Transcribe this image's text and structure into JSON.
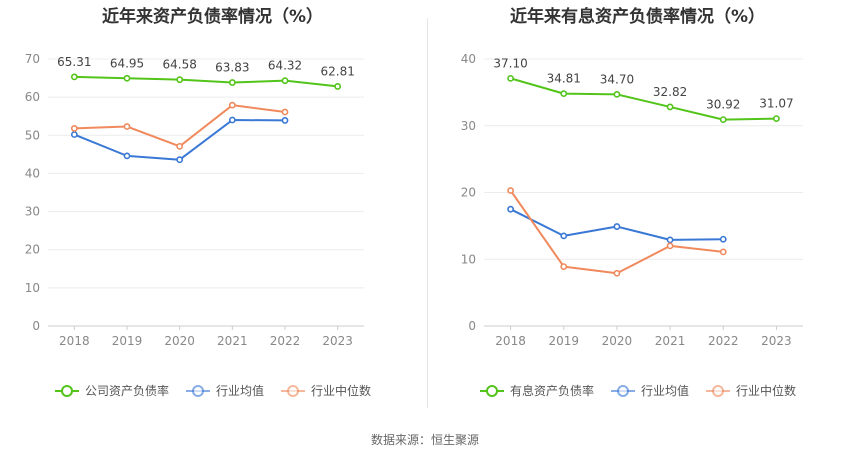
{
  "source_note": "数据来源：恒生聚源",
  "chart_data": [
    {
      "type": "line",
      "title": "近年来资产负债率情况（%）",
      "xlabel": "",
      "ylabel": "",
      "categories": [
        "2018",
        "2019",
        "2020",
        "2021",
        "2022",
        "2023"
      ],
      "ylim": [
        0,
        70
      ],
      "yticks": [
        0,
        10,
        20,
        30,
        40,
        50,
        60,
        70
      ],
      "grid": true,
      "legend_position": "bottom",
      "series": [
        {
          "name": "公司资产负债率",
          "color": "#52c41a",
          "values": [
            65.31,
            64.95,
            64.58,
            63.83,
            64.32,
            62.81
          ],
          "labels": [
            "65.31",
            "64.95",
            "64.58",
            "63.83",
            "64.32",
            "62.81"
          ]
        },
        {
          "name": "行业均值",
          "color": "#3a78d6",
          "values": [
            50.2,
            44.6,
            43.6,
            54.0,
            53.9,
            null
          ]
        },
        {
          "name": "行业中位数",
          "color": "#f08a5d",
          "values": [
            51.8,
            52.3,
            47.1,
            57.9,
            56.1,
            null
          ]
        }
      ]
    },
    {
      "type": "line",
      "title": "近年来有息资产负债率情况（%）",
      "xlabel": "",
      "ylabel": "",
      "categories": [
        "2018",
        "2019",
        "2020",
        "2021",
        "2022",
        "2023"
      ],
      "ylim": [
        0,
        40
      ],
      "yticks": [
        0,
        10,
        20,
        30,
        40
      ],
      "grid": true,
      "legend_position": "bottom",
      "series": [
        {
          "name": "有息资产负债率",
          "color": "#52c41a",
          "values": [
            37.1,
            34.81,
            34.7,
            32.82,
            30.92,
            31.07
          ],
          "labels": [
            "37.10",
            "34.81",
            "34.70",
            "32.82",
            "30.92",
            "31.07"
          ]
        },
        {
          "name": "行业均值",
          "color": "#3a78d6",
          "values": [
            17.5,
            13.5,
            14.9,
            12.9,
            13.0,
            null
          ]
        },
        {
          "name": "行业中位数",
          "color": "#f08a5d",
          "values": [
            20.3,
            8.9,
            7.9,
            12.0,
            11.1,
            null
          ]
        }
      ]
    }
  ]
}
